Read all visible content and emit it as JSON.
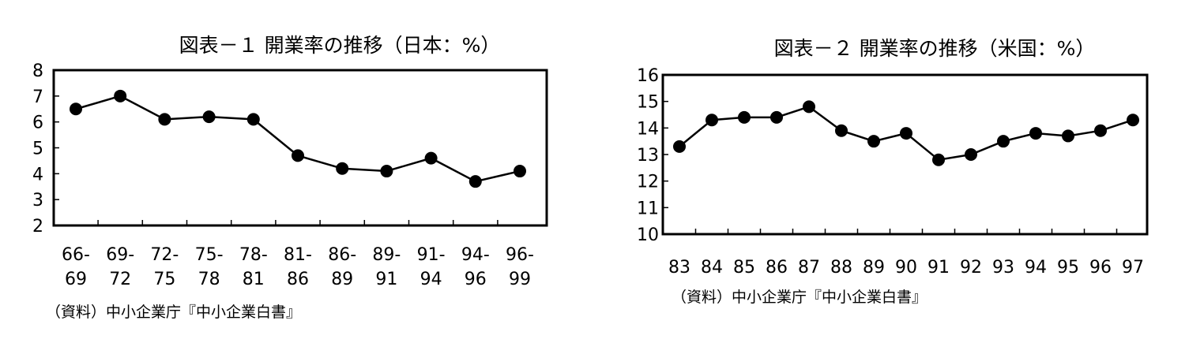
{
  "chart_data": [
    {
      "type": "line",
      "title": "図表－１ 開業率の推移（日本：%）",
      "categories": [
        [
          "66-",
          "69"
        ],
        [
          "69-",
          "72"
        ],
        [
          "72-",
          "75"
        ],
        [
          "75-",
          "78"
        ],
        [
          "78-",
          "81"
        ],
        [
          "81-",
          "86"
        ],
        [
          "86-",
          "89"
        ],
        [
          "89-",
          "91"
        ],
        [
          "91-",
          "94"
        ],
        [
          "94-",
          "96"
        ],
        [
          "96-",
          "99"
        ]
      ],
      "values": [
        6.5,
        7.0,
        6.1,
        6.2,
        6.1,
        4.7,
        4.2,
        4.1,
        4.6,
        3.7,
        4.1
      ],
      "ylim": [
        2,
        8
      ],
      "yticks": [
        2,
        3,
        4,
        5,
        6,
        7,
        8
      ],
      "grid": false,
      "source": "（資料）中小企業庁『中小企業白書』"
    },
    {
      "type": "line",
      "title": "図表－２ 開業率の推移（米国：%）",
      "categories": [
        [
          "83"
        ],
        [
          "84"
        ],
        [
          "85"
        ],
        [
          "86"
        ],
        [
          "87"
        ],
        [
          "88"
        ],
        [
          "89"
        ],
        [
          "90"
        ],
        [
          "91"
        ],
        [
          "92"
        ],
        [
          "93"
        ],
        [
          "94"
        ],
        [
          "95"
        ],
        [
          "96"
        ],
        [
          "97"
        ]
      ],
      "values": [
        13.3,
        14.3,
        14.4,
        14.4,
        14.8,
        13.9,
        13.5,
        13.8,
        12.8,
        13.0,
        13.5,
        13.8,
        13.7,
        13.9,
        14.3
      ],
      "ylim": [
        10,
        16
      ],
      "yticks": [
        10,
        11,
        12,
        13,
        14,
        15,
        16
      ],
      "grid": false,
      "source": "（資料）中小企業庁『中小企業白書』"
    }
  ]
}
